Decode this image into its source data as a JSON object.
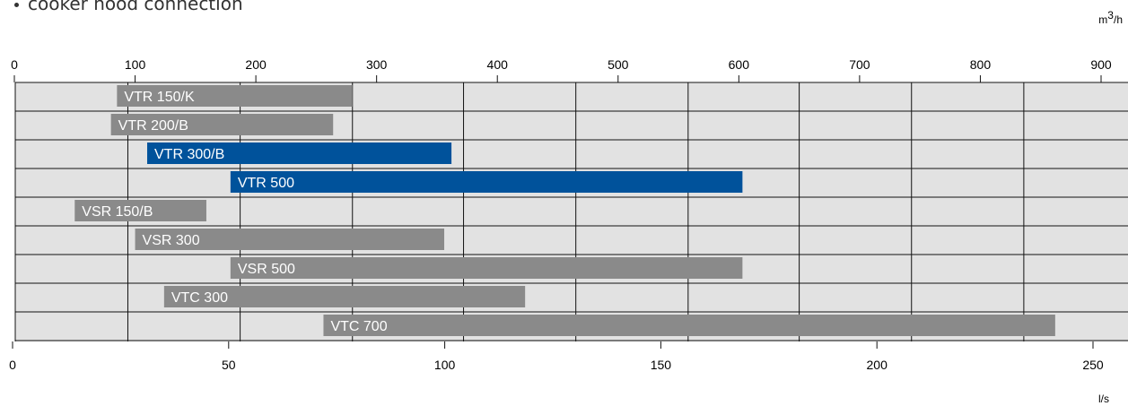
{
  "note": "cooker hood connection",
  "unit_top": {
    "base": "m",
    "exp": "3",
    "suffix": "/h"
  },
  "unit_bottom": "l/s",
  "colors": {
    "gray_bar": "#8a8a8a",
    "blue_bar": "#00529b",
    "plot_bg": "#e2e2e2",
    "grid": "#111111"
  },
  "chart_data": {
    "type": "bar",
    "orientation": "horizontal",
    "x_top": {
      "unit": "m3/h",
      "lim": [
        0,
        925
      ],
      "ticks": [
        0,
        100,
        200,
        300,
        400,
        500,
        600,
        700,
        800,
        900
      ]
    },
    "x_bottom": {
      "unit": "l/s",
      "lim": [
        0,
        257
      ],
      "ticks": [
        0,
        50,
        100,
        150,
        200,
        250
      ]
    },
    "grid_lines_m3h": [
      94,
      187,
      280,
      372,
      465,
      558,
      650,
      743,
      836
    ],
    "bars": [
      {
        "label": "VTR 150/K",
        "from": 85,
        "to": 280,
        "color": "gray"
      },
      {
        "label": "VTR 200/B",
        "from": 80,
        "to": 264,
        "color": "gray"
      },
      {
        "label": "VTR 300/B",
        "from": 110,
        "to": 362,
        "color": "blue"
      },
      {
        "label": "VTR 500",
        "from": 179,
        "to": 603,
        "color": "blue"
      },
      {
        "label": "VSR 150/B",
        "from": 50,
        "to": 159,
        "color": "gray"
      },
      {
        "label": "VSR 300",
        "from": 100,
        "to": 356,
        "color": "gray"
      },
      {
        "label": "VSR 500",
        "from": 179,
        "to": 603,
        "color": "gray"
      },
      {
        "label": "VTC 300",
        "from": 124,
        "to": 423,
        "color": "gray"
      },
      {
        "label": "VTC 700",
        "from": 256,
        "to": 862,
        "color": "gray"
      }
    ]
  }
}
